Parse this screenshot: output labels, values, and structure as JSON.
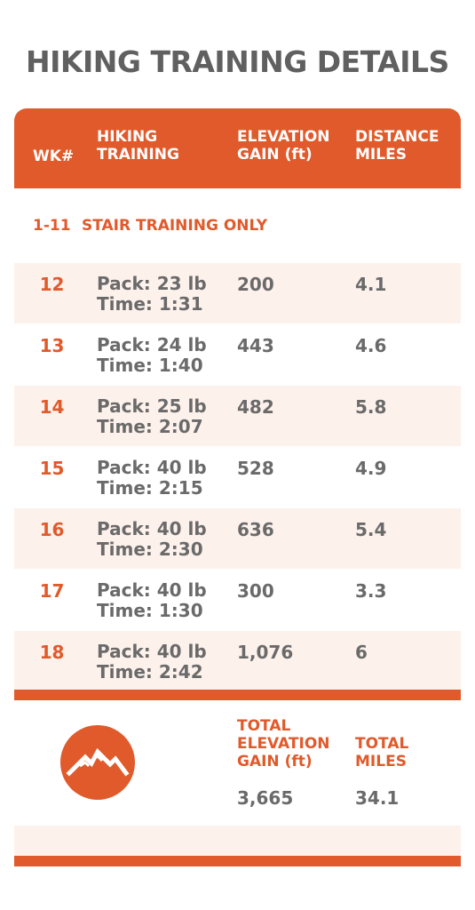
{
  "title": "HIKING TRAINING DETAILS",
  "header": {
    "wk": "WK#",
    "training_line1": "HIKING",
    "training_line2": "TRAINING",
    "elevation_line1": "ELEVATION",
    "elevation_line2": "GAIN (ft)",
    "distance_line1": "DISTANCE",
    "distance_line2": "MILES"
  },
  "stair": {
    "weeks": "1-11",
    "label": "STAIR TRAINING ONLY"
  },
  "rows": [
    {
      "wk": "12",
      "pack": "Pack: 23 lb",
      "time": "Time: 1:31",
      "elevation": "200",
      "distance": "4.1"
    },
    {
      "wk": "13",
      "pack": "Pack: 24 lb",
      "time": "Time: 1:40",
      "elevation": "443",
      "distance": "4.6"
    },
    {
      "wk": "14",
      "pack": "Pack: 25 lb",
      "time": "Time: 2:07",
      "elevation": "482",
      "distance": "5.8"
    },
    {
      "wk": "15",
      "pack": "Pack: 40 lb",
      "time": "Time: 2:15",
      "elevation": "528",
      "distance": "4.9"
    },
    {
      "wk": "16",
      "pack": "Pack: 40 lb",
      "time": "Time: 2:30",
      "elevation": "636",
      "distance": "5.4"
    },
    {
      "wk": "17",
      "pack": "Pack: 40 lb",
      "time": "Time: 1:30",
      "elevation": "300",
      "distance": "3.3"
    },
    {
      "wk": "18",
      "pack": "Pack: 40 lb",
      "time": "Time: 2:42",
      "elevation": "1,076",
      "distance": "6"
    }
  ],
  "totals": {
    "elevation_line1": "TOTAL",
    "elevation_line2": "ELEVATION",
    "elevation_line3": "GAIN (ft)",
    "elevation_value": "3,665",
    "miles_line1": "TOTAL",
    "miles_line2": "MILES",
    "miles_value": "34.1"
  },
  "logo_icon": "mountain-icon",
  "colors": {
    "accent": "#e05a2b",
    "shade": "#fdf1ec",
    "text_gray": "#6a6a6a",
    "title_gray": "#606060"
  }
}
